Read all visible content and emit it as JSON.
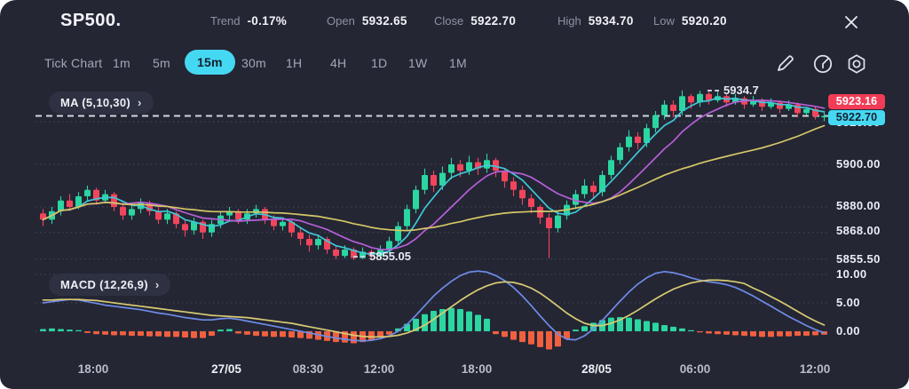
{
  "header": {
    "symbol": "SP500.",
    "stats": [
      {
        "label": "Trend",
        "value": "-0.17%"
      },
      {
        "label": "Open",
        "value": "5932.65"
      },
      {
        "label": "Close",
        "value": "5922.70"
      },
      {
        "label": "High",
        "value": "5934.70"
      },
      {
        "label": "Low",
        "value": "5920.20"
      }
    ]
  },
  "toolbar": {
    "tabs": [
      {
        "label": "Tick Chart",
        "active": false
      },
      {
        "label": "1m",
        "active": false
      },
      {
        "label": "5m",
        "active": false
      },
      {
        "label": "15m",
        "active": true
      },
      {
        "label": "30m",
        "active": false
      },
      {
        "label": "1H",
        "active": false
      },
      {
        "label": "4H",
        "active": false
      },
      {
        "label": "1D",
        "active": false
      },
      {
        "label": "1W",
        "active": false
      },
      {
        "label": "1M",
        "active": false
      }
    ],
    "icons": [
      "draw-pencil",
      "timer-dial",
      "settings-nut"
    ]
  },
  "indicators": {
    "ma_label": "MA (5,10,30)",
    "macd_label": "MACD (12,26,9)",
    "chevron": "›"
  },
  "price_tags": {
    "last": "5923.16",
    "current": "5922.70"
  },
  "annotations": {
    "high": "5934.7",
    "low": "5855.05"
  },
  "axes": {
    "price_labels": [
      "5920.00",
      "5900.00",
      "5880.00",
      "5868.00",
      "5855.50"
    ],
    "macd_labels": [
      "10.00",
      "5.00",
      "0.00"
    ],
    "time_labels": [
      "18:00",
      "27/05",
      "08:30",
      "12:00",
      "18:00",
      "28/05",
      "06:00",
      "12:00"
    ]
  },
  "colors": {
    "panel_bg": "#242634",
    "accent_cyan": "#45d8f2",
    "tag_red": "#f23c57",
    "up": "#2bd6a0",
    "down": "#f2455c",
    "hist_up": "#2bd6a0",
    "hist_down": "#f0603f",
    "macd_line": "#6e8ce8",
    "signal_line": "#d9cb72",
    "ma5": "#3fc8d8",
    "ma10": "#b75fd8",
    "ma30": "#d5c766",
    "dashed_line": "#d3d6e0",
    "grid": "#60647c"
  },
  "chart_data": {
    "type": "candlestick+macd",
    "symbol": "SP500",
    "interval": "15m",
    "current_price": 5922.7,
    "price_axis_ticks": [
      5920.0,
      5900.0,
      5880.0,
      5868.0,
      5855.5
    ],
    "macd_axis_ticks": [
      10.0,
      5.0,
      0.0
    ],
    "time_ticks": [
      "18:00",
      "27/05",
      "08:30",
      "12:00",
      "18:00",
      "28/05",
      "06:00",
      "12:00"
    ],
    "ma_periods": [
      5,
      10,
      30
    ],
    "candles": [
      [
        5877,
        5879,
        5871,
        5874
      ],
      [
        5874,
        5880,
        5872,
        5878
      ],
      [
        5878,
        5885,
        5876,
        5883
      ],
      [
        5883,
        5886,
        5878,
        5880
      ],
      [
        5880,
        5887,
        5879,
        5885
      ],
      [
        5885,
        5890,
        5883,
        5888
      ],
      [
        5888,
        5889,
        5881,
        5883
      ],
      [
        5883,
        5888,
        5882,
        5886
      ],
      [
        5886,
        5887,
        5878,
        5880
      ],
      [
        5880,
        5882,
        5874,
        5876
      ],
      [
        5876,
        5881,
        5874,
        5879
      ],
      [
        5879,
        5884,
        5877,
        5882
      ],
      [
        5882,
        5883,
        5876,
        5878
      ],
      [
        5878,
        5880,
        5872,
        5874
      ],
      [
        5874,
        5879,
        5872,
        5877
      ],
      [
        5877,
        5878,
        5870,
        5872
      ],
      [
        5872,
        5874,
        5866,
        5869
      ],
      [
        5869,
        5875,
        5867,
        5873
      ],
      [
        5873,
        5874,
        5865,
        5868
      ],
      [
        5868,
        5874,
        5866,
        5872
      ],
      [
        5872,
        5878,
        5870,
        5876
      ],
      [
        5876,
        5880,
        5874,
        5878
      ],
      [
        5878,
        5879,
        5872,
        5874
      ],
      [
        5874,
        5879,
        5872,
        5877
      ],
      [
        5877,
        5881,
        5875,
        5879
      ],
      [
        5879,
        5880,
        5872,
        5874
      ],
      [
        5874,
        5876,
        5869,
        5871
      ],
      [
        5871,
        5875,
        5869,
        5873
      ],
      [
        5873,
        5874,
        5866,
        5868
      ],
      [
        5868,
        5870,
        5862,
        5865
      ],
      [
        5865,
        5867,
        5859,
        5862
      ],
      [
        5862,
        5867,
        5860,
        5865
      ],
      [
        5865,
        5866,
        5858,
        5860
      ],
      [
        5860,
        5862,
        5855.5,
        5857
      ],
      [
        5857,
        5862,
        5856,
        5860
      ],
      [
        5860,
        5861,
        5855.05,
        5856
      ],
      [
        5856,
        5861,
        5855.5,
        5859
      ],
      [
        5859,
        5860,
        5855.6,
        5857
      ],
      [
        5857,
        5862,
        5856,
        5860
      ],
      [
        5860,
        5866,
        5858,
        5864
      ],
      [
        5864,
        5873,
        5862,
        5871
      ],
      [
        5871,
        5881,
        5869,
        5879
      ],
      [
        5879,
        5890,
        5877,
        5888
      ],
      [
        5888,
        5898,
        5886,
        5895
      ],
      [
        5895,
        5897,
        5887,
        5890
      ],
      [
        5890,
        5899,
        5888,
        5896
      ],
      [
        5896,
        5903,
        5893,
        5900
      ],
      [
        5900,
        5902,
        5894,
        5897
      ],
      [
        5897,
        5904,
        5895,
        5901
      ],
      [
        5901,
        5903,
        5895,
        5898
      ],
      [
        5898,
        5905,
        5896,
        5902
      ],
      [
        5902,
        5903,
        5894,
        5897
      ],
      [
        5897,
        5898,
        5889,
        5892
      ],
      [
        5892,
        5894,
        5885,
        5888
      ],
      [
        5888,
        5890,
        5881,
        5884
      ],
      [
        5884,
        5886,
        5877,
        5880
      ],
      [
        5880,
        5881,
        5872,
        5875
      ],
      [
        5875,
        5877,
        5856,
        5870
      ],
      [
        5870,
        5878,
        5868,
        5876
      ],
      [
        5876,
        5883,
        5874,
        5881
      ],
      [
        5881,
        5888,
        5879,
        5886
      ],
      [
        5886,
        5893,
        5884,
        5890
      ],
      [
        5890,
        5892,
        5884,
        5887
      ],
      [
        5887,
        5897,
        5885,
        5895
      ],
      [
        5895,
        5904,
        5893,
        5902
      ],
      [
        5902,
        5910,
        5900,
        5908
      ],
      [
        5908,
        5916,
        5906,
        5913
      ],
      [
        5913,
        5915,
        5907,
        5910
      ],
      [
        5910,
        5919,
        5908,
        5917
      ],
      [
        5917,
        5925,
        5915,
        5923
      ],
      [
        5923,
        5930,
        5921,
        5928
      ],
      [
        5928,
        5930,
        5922,
        5925
      ],
      [
        5925,
        5934.7,
        5923,
        5932
      ],
      [
        5932,
        5933,
        5926,
        5929
      ],
      [
        5929,
        5934.5,
        5927,
        5933
      ],
      [
        5933,
        5934,
        5928,
        5930
      ],
      [
        5930,
        5934,
        5929,
        5932
      ],
      [
        5932,
        5933,
        5927,
        5929
      ],
      [
        5929,
        5933,
        5928,
        5931
      ],
      [
        5931,
        5932,
        5926,
        5928
      ],
      [
        5928,
        5932,
        5927,
        5930
      ],
      [
        5930,
        5931,
        5925,
        5927
      ],
      [
        5927,
        5931,
        5926,
        5929
      ],
      [
        5929,
        5930,
        5924,
        5926
      ],
      [
        5926,
        5930,
        5925,
        5928
      ],
      [
        5928,
        5929,
        5922,
        5924
      ],
      [
        5924,
        5927,
        5923,
        5926
      ],
      [
        5926,
        5927,
        5921,
        5922.5
      ],
      [
        5922.5,
        5925,
        5920.2,
        5922.7
      ]
    ],
    "macd": {
      "macd_line": [
        5.0,
        5.2,
        5.4,
        5.6,
        5.5,
        5.2,
        4.9,
        4.6,
        4.4,
        4.2,
        4.0,
        3.8,
        3.5,
        3.2,
        3.0,
        2.7,
        2.4,
        2.2,
        2.0,
        2.0,
        2.2,
        2.3,
        2.1,
        1.8,
        1.5,
        1.2,
        0.9,
        0.6,
        0.3,
        0.0,
        -0.3,
        -0.6,
        -0.9,
        -1.2,
        -1.4,
        -1.6,
        -1.7,
        -1.6,
        -1.3,
        -0.8,
        0.0,
        1.2,
        2.8,
        4.5,
        6.2,
        7.6,
        8.8,
        9.8,
        10.4,
        10.6,
        10.4,
        9.8,
        8.9,
        7.7,
        6.2,
        4.5,
        2.7,
        1.0,
        -0.5,
        -1.4,
        -1.5,
        -0.8,
        0.4,
        1.9,
        3.6,
        5.3,
        6.9,
        8.3,
        9.4,
        10.2,
        10.5,
        10.3,
        9.9,
        9.4,
        9.0,
        8.7,
        8.5,
        8.2,
        7.7,
        7.0,
        6.2,
        5.3,
        4.4,
        3.5,
        2.6,
        1.8,
        1.0,
        0.3,
        -0.3
      ],
      "signal_line": [
        5.5,
        5.5,
        5.6,
        5.6,
        5.6,
        5.5,
        5.4,
        5.2,
        5.0,
        4.8,
        4.6,
        4.4,
        4.2,
        4.0,
        3.8,
        3.6,
        3.4,
        3.2,
        3.0,
        2.8,
        2.7,
        2.6,
        2.5,
        2.4,
        2.2,
        2.0,
        1.8,
        1.6,
        1.4,
        1.1,
        0.8,
        0.5,
        0.2,
        -0.1,
        -0.4,
        -0.7,
        -0.9,
        -1.0,
        -1.0,
        -0.9,
        -0.7,
        -0.3,
        0.3,
        1.1,
        2.1,
        3.2,
        4.3,
        5.4,
        6.4,
        7.3,
        8.0,
        8.5,
        8.7,
        8.6,
        8.2,
        7.6,
        6.7,
        5.6,
        4.4,
        3.2,
        2.2,
        1.4,
        1.0,
        1.0,
        1.4,
        2.0,
        2.8,
        3.7,
        4.7,
        5.7,
        6.6,
        7.4,
        8.0,
        8.5,
        8.8,
        9.0,
        9.0,
        8.9,
        8.7,
        8.4,
        7.6,
        6.9,
        6.1,
        5.3,
        4.4,
        3.5,
        2.6,
        1.8,
        1.1
      ],
      "histogram": [
        0.4,
        0.5,
        0.4,
        0.3,
        0.2,
        -0.3,
        -0.5,
        -0.6,
        -0.7,
        -0.7,
        -0.8,
        -0.8,
        -0.9,
        -0.9,
        -1.0,
        -1.0,
        -1.1,
        -1.2,
        -1.2,
        -0.8,
        0.3,
        0.4,
        -0.4,
        -0.6,
        -0.8,
        -0.9,
        -1.0,
        -1.0,
        -1.1,
        -1.2,
        -1.3,
        -1.5,
        -1.7,
        -1.9,
        -2.0,
        -2.1,
        -1.9,
        -1.6,
        -1.1,
        -0.6,
        0.5,
        1.3,
        2.2,
        3.0,
        3.6,
        3.9,
        4.1,
        3.9,
        3.5,
        2.9,
        2.2,
        -0.5,
        -1.0,
        -1.5,
        -1.9,
        -2.3,
        -2.8,
        -3.2,
        -2.7,
        -1.3,
        0.3,
        0.9,
        1.5,
        2.0,
        2.4,
        2.5,
        2.4,
        2.1,
        1.8,
        1.5,
        1.1,
        0.8,
        0.5,
        0.2,
        -0.2,
        -0.4,
        -0.5,
        -0.6,
        -0.7,
        -0.8,
        -0.9,
        -1.0,
        -1.0,
        -0.9,
        -0.9,
        -0.8,
        -0.8,
        -0.7,
        -0.6
      ]
    },
    "annotations": [
      {
        "type": "high-marker",
        "value": 5934.7
      },
      {
        "type": "low-marker",
        "value": 5855.05
      }
    ]
  }
}
